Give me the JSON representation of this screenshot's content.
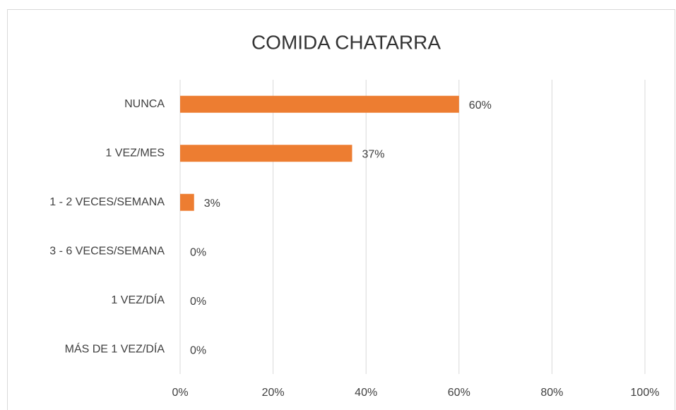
{
  "chart_data": {
    "type": "hbar",
    "title": "COMIDA CHATARRA",
    "categories": [
      "NUNCA",
      "1 VEZ/MES",
      "1 - 2 VECES/SEMANA",
      "3 - 6 VECES/SEMANA",
      "1 VEZ/DÍA",
      "MÁS DE 1 VEZ/DÍA"
    ],
    "values": [
      60,
      37,
      3,
      0,
      0,
      0
    ],
    "value_labels": [
      "60%",
      "37%",
      "3%",
      "0%",
      "0%",
      "0%"
    ],
    "color": "#ed7d31",
    "xlim": [
      0,
      100
    ],
    "xticks": [
      {
        "value": 0,
        "label": "0%"
      },
      {
        "value": 20,
        "label": "20%"
      },
      {
        "value": 40,
        "label": "40%"
      },
      {
        "value": 60,
        "label": "60%"
      },
      {
        "value": 80,
        "label": "80%"
      },
      {
        "value": 100,
        "label": "100%"
      }
    ],
    "grid": true
  }
}
